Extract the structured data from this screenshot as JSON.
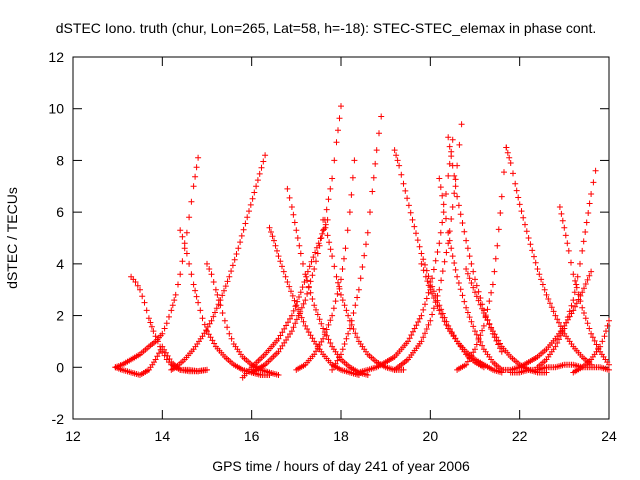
{
  "chart_data": {
    "type": "scatter",
    "title": "dSTEC Iono. truth (chur, Lon=265, Lat=58, h=-18): STEC-STEC_elemax in phase cont.",
    "xlabel": "GPS time / hours of day 241 of year 2006",
    "ylabel": "dSTEC  / TECUs",
    "xlim": [
      12,
      24
    ],
    "ylim": [
      -2,
      12
    ],
    "xticks": [
      "12",
      "14",
      "16",
      "18",
      "20",
      "22",
      "24"
    ],
    "yticks": [
      "-2",
      "0",
      "2",
      "4",
      "6",
      "8",
      "10",
      "12"
    ],
    "grid": false,
    "legend": "none",
    "marker": "plus",
    "color": "#ff0000",
    "series": [
      {
        "x": [
          12.95,
          13.1,
          13.3,
          13.5,
          13.7,
          13.85,
          14.0,
          14.1,
          14.2,
          14.3,
          14.4,
          14.5,
          14.6,
          14.7,
          14.8
        ],
        "values": [
          0.0,
          0.1,
          0.3,
          0.5,
          0.8,
          1.0,
          1.3,
          1.7,
          2.2,
          2.8,
          3.6,
          4.6,
          5.8,
          7.0,
          8.1
        ]
      },
      {
        "x": [
          13.3,
          13.4,
          13.5,
          13.6,
          13.7,
          13.8,
          13.9,
          14.0,
          14.1,
          14.2,
          14.4,
          14.6,
          14.8,
          15.0
        ],
        "values": [
          3.5,
          3.3,
          3.0,
          2.5,
          1.9,
          1.4,
          1.0,
          0.6,
          0.3,
          0.1,
          -0.1,
          -0.15,
          -0.15,
          -0.1
        ]
      },
      {
        "x": [
          12.95,
          13.1,
          13.3,
          13.5,
          13.7,
          13.85,
          14.0,
          14.2,
          14.4,
          14.6,
          14.8,
          15.0
        ],
        "values": [
          0.0,
          -0.1,
          -0.2,
          -0.3,
          -0.1,
          0.3,
          0.8,
          0.2,
          -0.1,
          -0.1,
          -0.15,
          -0.1
        ]
      },
      {
        "x": [
          14.4,
          14.5,
          14.6,
          14.7,
          14.8,
          14.9,
          15.0,
          15.2,
          15.4,
          15.6,
          15.8,
          16.0,
          16.2,
          16.4
        ],
        "values": [
          5.3,
          4.8,
          4.0,
          3.2,
          2.5,
          1.9,
          1.4,
          0.8,
          0.4,
          0.1,
          -0.1,
          -0.2,
          -0.3,
          -0.3
        ]
      },
      {
        "x": [
          14.2,
          14.3,
          14.5,
          14.7,
          14.9,
          15.1,
          15.3,
          15.5,
          15.7,
          15.9,
          16.1,
          16.3
        ],
        "values": [
          -0.1,
          0.0,
          0.3,
          0.7,
          1.2,
          1.8,
          2.6,
          3.5,
          4.6,
          5.8,
          7.0,
          8.2
        ]
      },
      {
        "x": [
          15.0,
          15.1,
          15.2,
          15.3,
          15.4,
          15.5,
          15.6,
          15.8,
          16.0,
          16.2,
          16.4,
          16.6
        ],
        "values": [
          4.0,
          3.6,
          3.0,
          2.4,
          1.8,
          1.3,
          0.9,
          0.4,
          0.1,
          -0.1,
          -0.2,
          -0.3
        ]
      },
      {
        "x": [
          15.8,
          16.0,
          16.3,
          16.6,
          16.9,
          17.1,
          17.3,
          17.5,
          17.7
        ],
        "values": [
          -0.4,
          0.0,
          0.5,
          1.1,
          2.0,
          2.9,
          3.9,
          4.8,
          5.7
        ]
      },
      {
        "x": [
          16.4,
          16.5,
          16.6,
          16.8,
          17.0,
          17.2,
          17.4,
          17.6,
          17.8,
          18.0,
          18.2,
          18.4
        ],
        "values": [
          5.4,
          4.9,
          4.3,
          3.3,
          2.4,
          1.6,
          1.0,
          0.5,
          0.1,
          -0.1,
          -0.2,
          -0.3
        ]
      },
      {
        "x": [
          16.8,
          16.9,
          17.0,
          17.1,
          17.2,
          17.4,
          17.6,
          17.8,
          18.0,
          18.2,
          18.4,
          18.6
        ],
        "values": [
          6.9,
          6.2,
          5.3,
          4.4,
          3.6,
          2.4,
          1.5,
          0.8,
          0.3,
          0.0,
          -0.2,
          -0.3
        ]
      },
      {
        "x": [
          16.0,
          16.3,
          16.6,
          16.9,
          17.2,
          17.4,
          17.6,
          17.8,
          17.9,
          18.0
        ],
        "values": [
          -0.2,
          0.1,
          0.6,
          1.4,
          2.6,
          3.8,
          5.3,
          7.3,
          8.7,
          10.1
        ]
      },
      {
        "x": [
          17.6,
          17.7,
          17.8,
          17.9,
          18.0,
          18.2,
          18.4,
          18.6,
          18.8,
          19.0,
          19.2,
          19.4
        ],
        "values": [
          5.7,
          5.1,
          4.3,
          3.5,
          2.8,
          1.8,
          1.0,
          0.5,
          0.2,
          0.0,
          -0.1,
          -0.1
        ]
      },
      {
        "x": [
          17.0,
          17.2,
          17.4,
          17.6,
          17.8,
          18.0,
          18.1,
          18.2,
          18.3
        ],
        "values": [
          -0.1,
          0.1,
          0.5,
          1.1,
          2.0,
          3.4,
          4.6,
          6.0,
          8.0
        ]
      },
      {
        "x": [
          17.8,
          18.0,
          18.2,
          18.4,
          18.6,
          18.7,
          18.8,
          18.9
        ],
        "values": [
          -0.1,
          0.5,
          1.5,
          3.0,
          5.2,
          6.8,
          8.4,
          9.7
        ]
      },
      {
        "x": [
          19.2,
          19.3,
          19.4,
          19.6,
          19.8,
          20.0,
          20.2,
          20.4,
          20.6,
          20.8,
          21.0,
          21.2
        ],
        "values": [
          8.4,
          7.8,
          7.1,
          5.7,
          4.4,
          3.3,
          2.4,
          1.6,
          1.0,
          0.5,
          0.2,
          0.0
        ]
      },
      {
        "x": [
          18.4,
          18.8,
          19.2,
          19.5,
          19.8,
          20.0,
          20.2,
          20.3,
          20.4,
          20.5
        ],
        "values": [
          -0.2,
          0.0,
          0.4,
          1.0,
          2.0,
          3.1,
          4.8,
          6.0,
          7.4,
          8.8
        ]
      },
      {
        "x": [
          19.8,
          19.9,
          20.0,
          20.2,
          20.4,
          20.6,
          20.8,
          21.0,
          21.2,
          21.4,
          21.6
        ],
        "values": [
          4.0,
          3.5,
          3.0,
          2.2,
          1.5,
          1.0,
          0.6,
          0.3,
          0.1,
          -0.1,
          -0.2
        ]
      },
      {
        "x": [
          20.2,
          20.3,
          20.4,
          20.5,
          20.6,
          20.8,
          21.0,
          21.2,
          21.4,
          21.6
        ],
        "values": [
          7.3,
          6.3,
          5.2,
          4.3,
          3.5,
          2.3,
          1.4,
          0.7,
          0.2,
          -0.1
        ]
      },
      {
        "x": [
          19.2,
          19.5,
          19.8,
          20.0,
          20.2,
          20.4,
          20.5,
          20.6,
          20.7
        ],
        "values": [
          -0.1,
          0.3,
          1.0,
          1.8,
          3.0,
          4.8,
          6.2,
          7.8,
          9.4
        ]
      },
      {
        "x": [
          20.4,
          20.5,
          20.6,
          20.8,
          21.0,
          21.2,
          21.4,
          21.6
        ],
        "values": [
          8.9,
          7.8,
          6.6,
          4.9,
          3.4,
          2.2,
          1.3,
          0.6
        ]
      },
      {
        "x": [
          20.6,
          20.8,
          21.0,
          21.2,
          21.4,
          21.5,
          21.6,
          21.7
        ],
        "values": [
          -0.1,
          0.1,
          0.7,
          1.6,
          3.2,
          4.7,
          6.6,
          8.5
        ]
      },
      {
        "x": [
          21.7,
          21.8,
          21.9,
          22.0,
          22.2,
          22.4,
          22.6,
          22.8,
          23.0,
          23.2,
          23.4,
          23.6
        ],
        "values": [
          8.5,
          7.9,
          7.1,
          6.3,
          5.0,
          3.8,
          2.8,
          2.0,
          1.3,
          0.8,
          0.4,
          0.1
        ]
      },
      {
        "x": [
          20.8,
          21.0,
          21.2,
          21.4,
          21.6,
          21.8,
          22.0,
          22.2,
          22.4,
          22.6
        ],
        "values": [
          3.8,
          2.9,
          2.1,
          1.4,
          0.8,
          0.4,
          0.1,
          -0.1,
          -0.2,
          -0.2
        ]
      },
      {
        "x": [
          21.6,
          21.8,
          22.0,
          22.2,
          22.4,
          22.6,
          22.8,
          23.0,
          23.2,
          23.4,
          23.6
        ],
        "values": [
          -0.1,
          -0.1,
          0.0,
          0.2,
          0.4,
          0.7,
          1.1,
          1.6,
          2.2,
          2.9,
          3.7
        ]
      },
      {
        "x": [
          22.9,
          23.0,
          23.1,
          23.2,
          23.4,
          23.6,
          23.8,
          24.0
        ],
        "values": [
          6.2,
          5.4,
          4.5,
          3.6,
          2.3,
          1.3,
          0.6,
          0.1
        ]
      },
      {
        "x": [
          22.4,
          22.6,
          22.8,
          23.0,
          23.2,
          23.3,
          23.4,
          23.5,
          23.6,
          23.7
        ],
        "values": [
          0.0,
          0.3,
          0.8,
          1.5,
          2.6,
          3.5,
          4.5,
          5.6,
          6.7,
          7.6
        ]
      },
      {
        "x": [
          23.2,
          23.4,
          23.6,
          23.8,
          23.9,
          24.0
        ],
        "values": [
          -0.2,
          0.0,
          0.3,
          0.8,
          1.2,
          1.8
        ]
      },
      {
        "x": [
          21.8,
          22.0,
          22.2,
          22.4,
          22.6,
          22.8,
          23.0,
          23.2,
          23.4,
          23.6,
          23.8,
          24.0
        ],
        "values": [
          -0.2,
          -0.2,
          -0.1,
          -0.1,
          0.0,
          0.0,
          0.1,
          0.1,
          0.0,
          0.0,
          0.0,
          -0.1
        ]
      }
    ]
  }
}
